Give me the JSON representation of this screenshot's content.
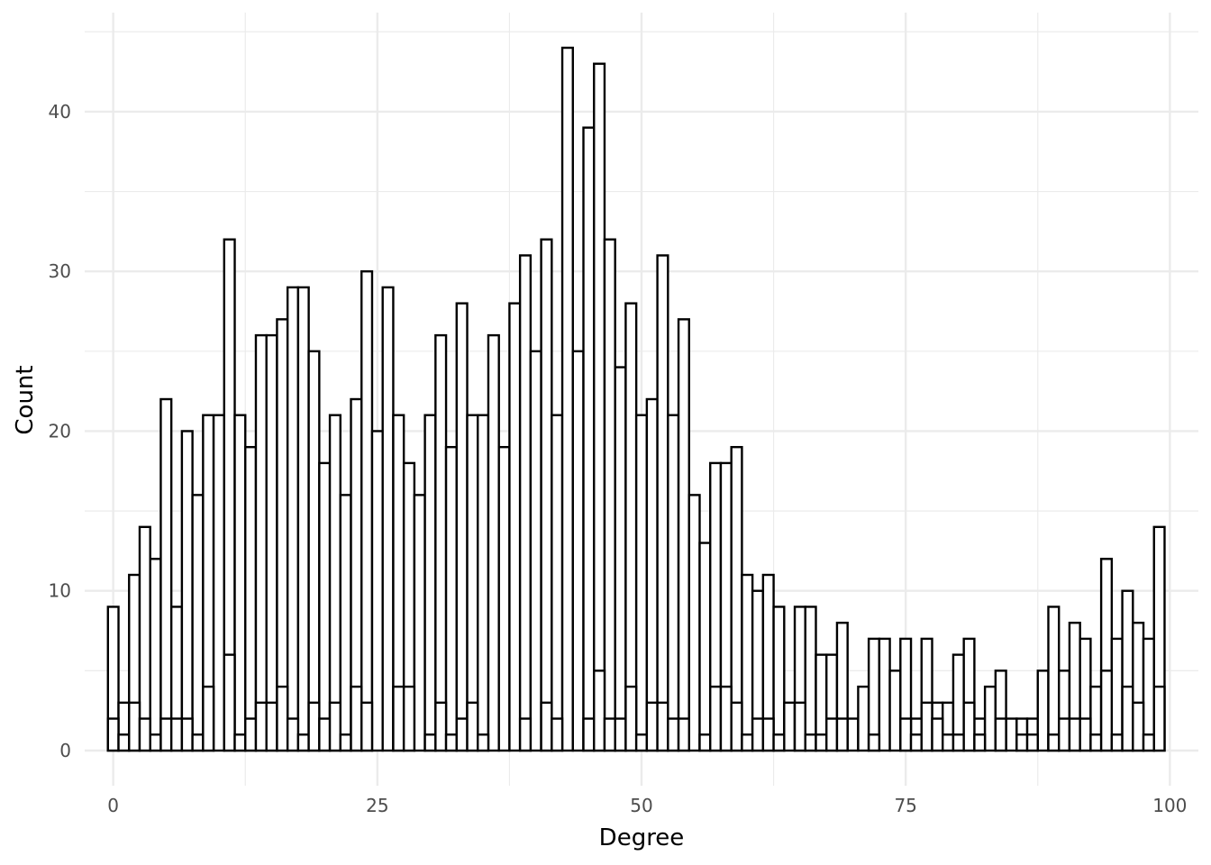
{
  "chart_data": {
    "type": "bar",
    "subtype": "histogram",
    "xlabel": "Degree",
    "ylabel": "Count",
    "xlim": [
      -2.7,
      102.7
    ],
    "ylim": [
      -2.2,
      46.2
    ],
    "x_ticks": [
      0,
      25,
      50,
      75,
      100
    ],
    "y_ticks": [
      0,
      10,
      20,
      30,
      40
    ],
    "grid": true,
    "bar_fill": "#ffffff",
    "bar_stroke": "#000000",
    "grid_color": "#ebebeb",
    "series": [
      {
        "values": [
          9,
          3,
          11,
          14,
          12,
          22,
          9,
          20,
          16,
          21,
          21,
          32,
          21,
          19,
          26,
          26,
          27,
          29,
          29,
          25,
          18,
          21,
          16,
          22,
          30,
          20,
          29,
          21,
          18,
          16,
          21,
          26,
          19,
          28,
          21,
          21,
          26,
          19,
          28,
          31,
          25,
          32,
          21,
          44,
          25,
          39,
          43,
          32,
          24,
          28,
          21,
          22,
          31,
          21,
          27,
          16,
          13,
          18,
          18,
          19,
          11,
          10,
          11,
          9,
          3,
          9,
          9,
          6,
          6,
          8,
          2,
          4,
          7,
          7,
          5,
          7,
          2,
          7,
          3,
          3,
          6,
          7,
          2,
          4,
          5,
          2,
          2,
          2,
          5,
          9,
          5,
          8,
          7,
          4,
          12,
          7,
          10,
          8,
          7,
          14
        ]
      },
      {
        "values": [
          2,
          1,
          3,
          2,
          1,
          2,
          2,
          2,
          1,
          4,
          0,
          6,
          1,
          2,
          3,
          3,
          4,
          2,
          1,
          3,
          2,
          3,
          1,
          4,
          3,
          0,
          0,
          4,
          4,
          0,
          1,
          3,
          1,
          2,
          3,
          1,
          0,
          0,
          0,
          2,
          0,
          3,
          2,
          0,
          0,
          2,
          5,
          2,
          2,
          4,
          1,
          3,
          3,
          2,
          2,
          0,
          1,
          4,
          4,
          3,
          1,
          2,
          2,
          1,
          0,
          3,
          1,
          1,
          2,
          2,
          0,
          0,
          1,
          0,
          0,
          2,
          1,
          3,
          2,
          1,
          1,
          3,
          1,
          0,
          2,
          0,
          1,
          1,
          0,
          1,
          2,
          2,
          2,
          1,
          5,
          1,
          4,
          3,
          1,
          4
        ]
      }
    ]
  }
}
